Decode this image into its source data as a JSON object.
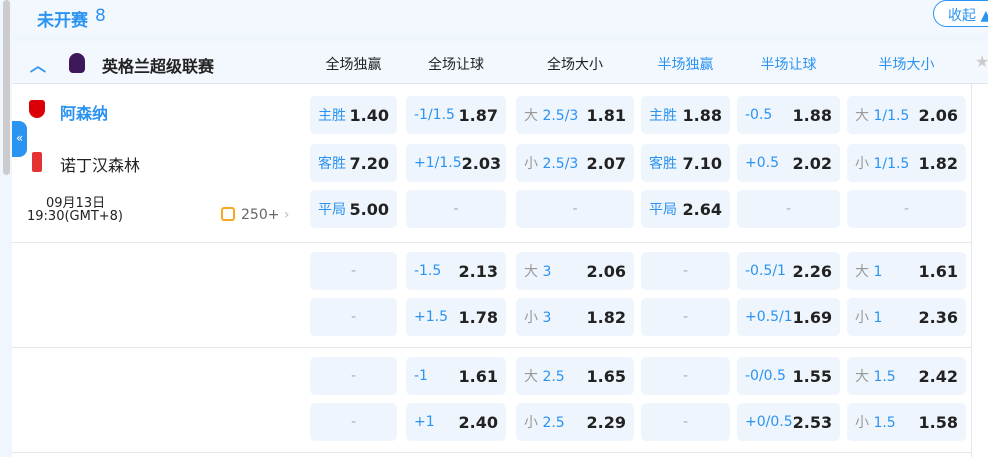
{
  "section": {
    "title": "未开赛",
    "count": "8",
    "collapse_label": "收起"
  },
  "league": {
    "name": "英格兰超级联赛",
    "columns": [
      "全场独赢",
      "全场让球",
      "全场大小",
      "半场独赢",
      "半场让球",
      "半场大小"
    ]
  },
  "match": {
    "home": "阿森纳",
    "away": "诺丁汉森林",
    "date": "09月13日",
    "time": "19:30(GMT+8)",
    "more": "250+"
  },
  "colors": {
    "accent": "#2b93f2",
    "cell_bg": "#eef5fd"
  },
  "rows": [
    [
      [
        "主胜",
        "1.40"
      ],
      [
        "-1/1.5",
        "1.87"
      ],
      [
        "大|2.5/3",
        "1.81"
      ],
      [
        "主胜",
        "1.88"
      ],
      [
        "-0.5",
        "1.88"
      ],
      [
        "大|1/1.5",
        "2.06"
      ]
    ],
    [
      [
        "客胜",
        "7.20"
      ],
      [
        "+1/1.5",
        "2.03"
      ],
      [
        "小|2.5/3",
        "2.07"
      ],
      [
        "客胜",
        "7.10"
      ],
      [
        "+0.5",
        "2.02"
      ],
      [
        "小|1/1.5",
        "1.82"
      ]
    ],
    [
      [
        "平局",
        "5.00"
      ],
      [
        "-",
        ""
      ],
      [
        "-",
        ""
      ],
      [
        "平局",
        "2.64"
      ],
      [
        "-",
        ""
      ],
      [
        "-",
        ""
      ]
    ],
    [
      [
        "-",
        ""
      ],
      [
        "-1.5",
        "2.13"
      ],
      [
        "大|3",
        "2.06"
      ],
      [
        "-",
        ""
      ],
      [
        "-0.5/1",
        "2.26"
      ],
      [
        "大|1",
        "1.61"
      ]
    ],
    [
      [
        "-",
        ""
      ],
      [
        "+1.5",
        "1.78"
      ],
      [
        "小|3",
        "1.82"
      ],
      [
        "-",
        ""
      ],
      [
        "+0.5/1",
        "1.69"
      ],
      [
        "小|1",
        "2.36"
      ]
    ],
    [
      [
        "-",
        ""
      ],
      [
        "-1",
        "1.61"
      ],
      [
        "大|2.5",
        "1.65"
      ],
      [
        "-",
        ""
      ],
      [
        "-0/0.5",
        "1.55"
      ],
      [
        "大|1.5",
        "2.42"
      ]
    ],
    [
      [
        "-",
        ""
      ],
      [
        "+1",
        "2.40"
      ],
      [
        "小|2.5",
        "2.29"
      ],
      [
        "-",
        ""
      ],
      [
        "+0/0.5",
        "2.53"
      ],
      [
        "小|1.5",
        "1.58"
      ]
    ]
  ]
}
